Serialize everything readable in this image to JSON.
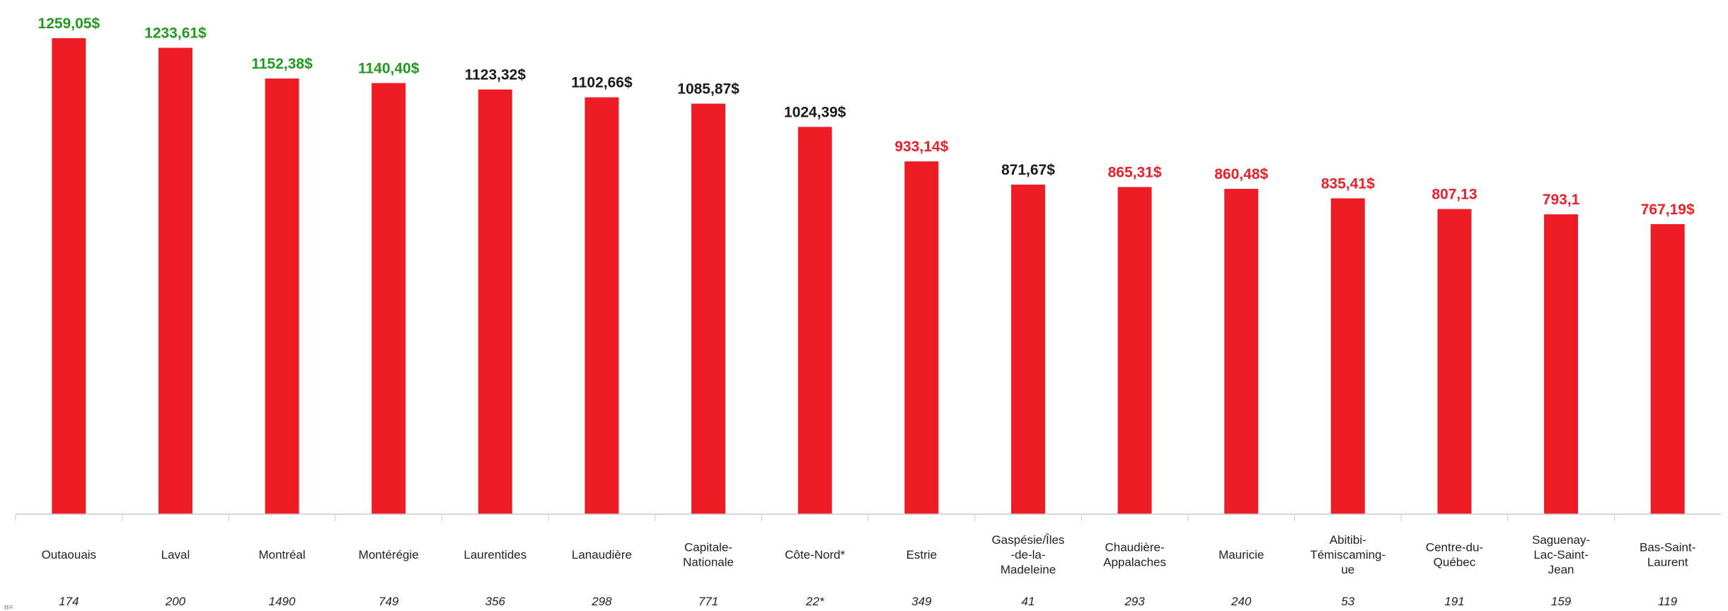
{
  "chart_data": {
    "type": "bar",
    "title": "",
    "xlabel": "",
    "ylabel": "",
    "ylim": [
      0,
      1300
    ],
    "grid": false,
    "legend": "none",
    "corner_note": "n=",
    "categories": [
      [
        "Outaouais"
      ],
      [
        "Laval"
      ],
      [
        "Montréal"
      ],
      [
        "Montérégie"
      ],
      [
        "Laurentides"
      ],
      [
        "Lanaudière"
      ],
      [
        "Capitale-",
        "Nationale"
      ],
      [
        "Côte-Nord*"
      ],
      [
        "Estrie"
      ],
      [
        "Gaspésie/Îles",
        "-de-la-",
        "Madeleine"
      ],
      [
        "Chaudière-",
        "Appalaches"
      ],
      [
        "Mauricie"
      ],
      [
        "Abitibi-",
        "Témiscaming-",
        "ue"
      ],
      [
        "Centre-du-",
        "Québec"
      ],
      [
        "Saguenay-",
        "Lac-Saint-",
        "Jean"
      ],
      [
        "Bas-Saint-",
        "Laurent"
      ]
    ],
    "values": [
      1259.05,
      1233.61,
      1152.38,
      1140.4,
      1123.32,
      1102.66,
      1085.87,
      1024.39,
      933.14,
      871.67,
      865.31,
      860.48,
      835.41,
      807.13,
      793.1,
      767.19
    ],
    "value_labels": [
      "1259,05$",
      "1233,61$",
      "1152,38$",
      "1140,40$",
      "1123,32$",
      "1102,66$",
      "1085,87$",
      "1024,39$",
      "933,14$",
      "871,67$",
      "865,31$",
      "860,48$",
      "835,41$",
      "807,13",
      "793,1",
      "767,19$"
    ],
    "value_label_colors": [
      "#1f9a1f",
      "#1f9a1f",
      "#1f9a1f",
      "#1f9a1f",
      "#1a1a1a",
      "#1a1a1a",
      "#1a1a1a",
      "#1a1a1a",
      "#e8202a",
      "#1a1a1a",
      "#e8202a",
      "#e8202a",
      "#e8202a",
      "#e8202a",
      "#e8202a",
      "#e8202a"
    ],
    "counts": [
      "174",
      "200",
      "1490",
      "749",
      "356",
      "298",
      "771",
      "22*",
      "349",
      "41",
      "293",
      "240",
      "53",
      "191",
      "159",
      "119"
    ],
    "bar_color": "#ee1c25",
    "axis_color": "#c8c8c8"
  }
}
